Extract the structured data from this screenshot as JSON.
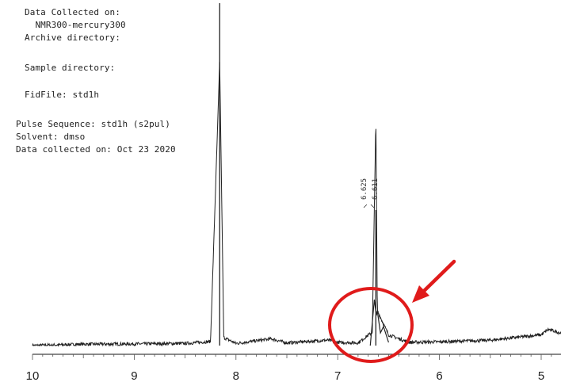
{
  "header": {
    "lines": [
      "Data Collected on:",
      "  NMR300-mercury300",
      "Archive directory:",
      "Sample directory:",
      "FidFile: std1h",
      "Pulse Sequence: std1h (s2pul)",
      "Solvent: dmso",
      "Data collected on: Oct 23 2020"
    ]
  },
  "chart_data": {
    "type": "line",
    "title": "",
    "xlabel": "",
    "ylabel": "",
    "x_reversed": true,
    "xlim": [
      10.0,
      4.7
    ],
    "x_ticks": [
      10,
      9,
      8,
      7,
      6,
      5
    ],
    "x_tick_labels": [
      "10",
      "9",
      "8",
      "7",
      "6",
      "5"
    ],
    "peak_labels": [
      "6.625",
      "6.611"
    ],
    "series": [
      {
        "values_description_only": false,
        "points": [
          [
            10.0,
            0.0
          ],
          [
            9.5,
            0.005
          ],
          [
            9.0,
            0.006
          ],
          [
            8.5,
            0.008
          ],
          [
            8.25,
            0.015
          ],
          [
            8.16,
            1.05
          ],
          [
            8.12,
            0.03
          ],
          [
            8.0,
            0.008
          ],
          [
            7.65,
            0.025
          ],
          [
            7.5,
            0.01
          ],
          [
            7.1,
            0.02
          ],
          [
            7.0,
            0.012
          ],
          [
            6.8,
            0.01
          ],
          [
            6.66,
            0.05
          ],
          [
            6.625,
            0.85
          ],
          [
            6.611,
            0.13
          ],
          [
            6.55,
            0.08
          ],
          [
            6.5,
            0.04
          ],
          [
            6.3,
            0.012
          ],
          [
            6.0,
            0.014
          ],
          [
            5.5,
            0.02
          ],
          [
            5.0,
            0.04
          ],
          [
            4.93,
            0.06
          ],
          [
            4.7,
            0.035
          ]
        ]
      }
    ],
    "annotations": {
      "circle_color": "#e01b1b",
      "arrow_color": "#e01b1b"
    }
  }
}
